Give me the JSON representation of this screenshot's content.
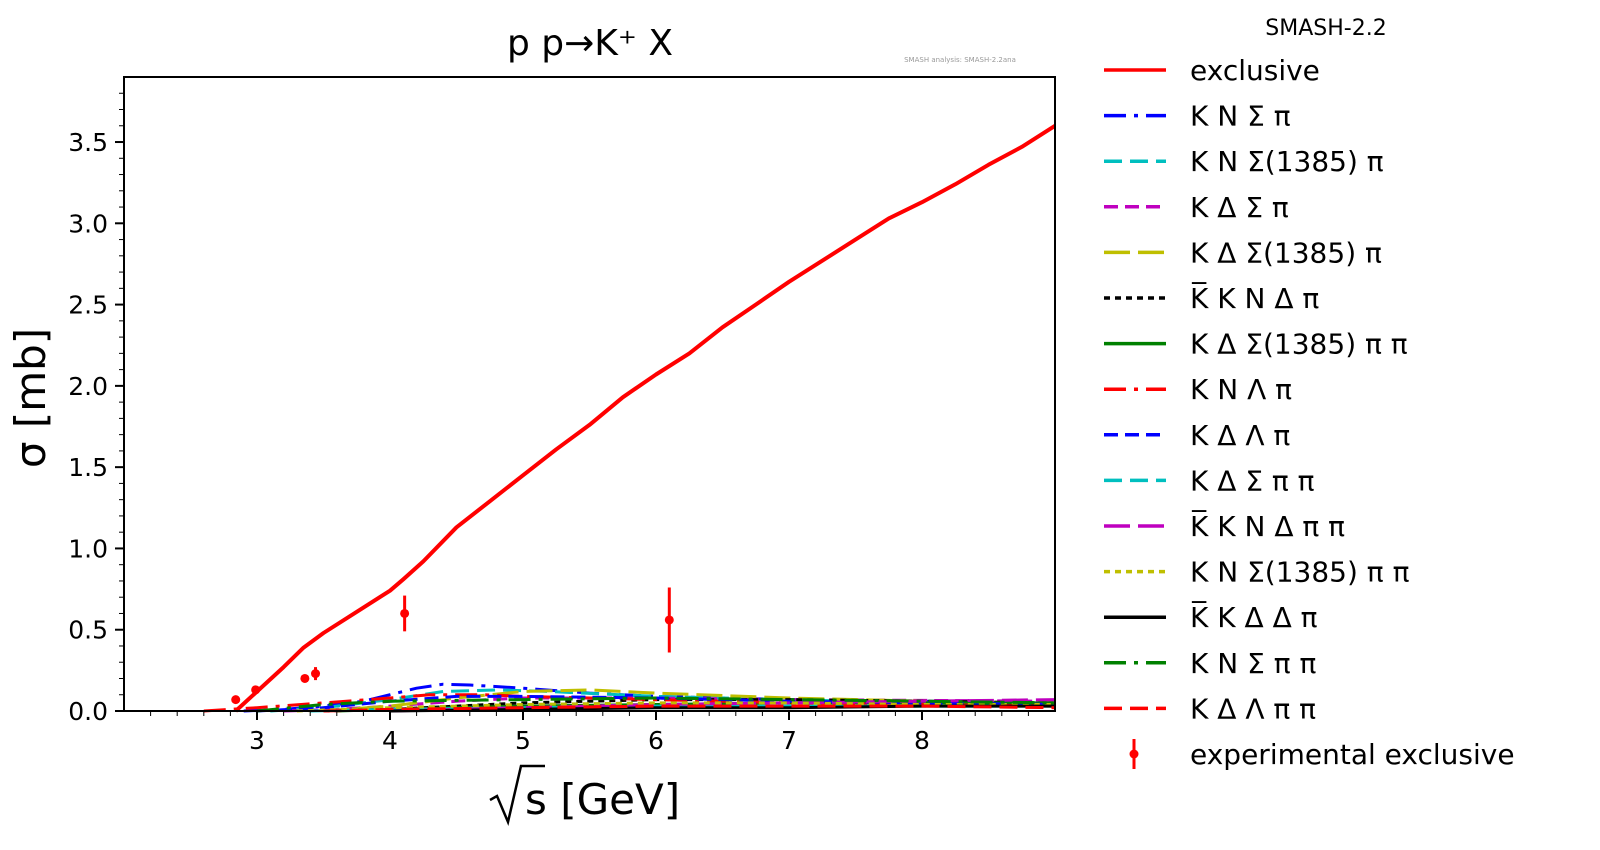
{
  "chart_data": {
    "type": "line",
    "title": "p p→K⁺ X",
    "watermark": "SMASH analysis: SMASH-2.2ana",
    "xlabel": "s [GeV]",
    "ylabel": "σ [mb]",
    "xlim": [
      2.0,
      9.0
    ],
    "ylim": [
      0.0,
      3.9
    ],
    "x_ticks": [
      "3",
      "4",
      "5",
      "6",
      "7",
      "8"
    ],
    "y_ticks": [
      "0.0",
      "0.5",
      "1.0",
      "1.5",
      "2.0",
      "2.5",
      "3.0",
      "3.5"
    ],
    "legend_title": "SMASH-2.2",
    "legend_position": "outside-right",
    "grid": false,
    "series": [
      {
        "name": "exclusive",
        "color": "#ff0000",
        "dash": "solid",
        "width": 4,
        "x": [
          2.84,
          3.0,
          3.2,
          3.35,
          3.5,
          3.75,
          4.0,
          4.1,
          4.25,
          4.5,
          4.75,
          5.0,
          5.25,
          5.5,
          5.75,
          6.0,
          6.25,
          6.5,
          6.75,
          7.0,
          7.25,
          7.5,
          7.75,
          8.0,
          8.25,
          8.5,
          8.75,
          9.0
        ],
        "y": [
          0.0,
          0.12,
          0.27,
          0.39,
          0.48,
          0.61,
          0.74,
          0.81,
          0.92,
          1.13,
          1.29,
          1.45,
          1.61,
          1.76,
          1.93,
          2.07,
          2.2,
          2.36,
          2.5,
          2.64,
          2.77,
          2.9,
          3.03,
          3.13,
          3.24,
          3.36,
          3.47,
          3.6
        ]
      },
      {
        "name": "K N Σ π",
        "color": "#0000ff",
        "dash": "22,8,4,8",
        "width": 3,
        "x": [
          2.9,
          3.2,
          3.5,
          3.8,
          4.0,
          4.2,
          4.4,
          4.6,
          5.0,
          5.5,
          6.0,
          7.0,
          8.0,
          9.0
        ],
        "y": [
          0.0,
          0.01,
          0.03,
          0.06,
          0.1,
          0.14,
          0.165,
          0.16,
          0.14,
          0.11,
          0.09,
          0.07,
          0.06,
          0.05
        ]
      },
      {
        "name": "K N Σ(1385) π",
        "color": "#00bfbf",
        "dash": "18,8",
        "width": 3,
        "x": [
          3.1,
          3.5,
          4.0,
          4.4,
          4.8,
          5.2,
          6.0,
          7.0,
          8.0,
          9.0
        ],
        "y": [
          0.0,
          0.02,
          0.07,
          0.12,
          0.13,
          0.12,
          0.09,
          0.07,
          0.05,
          0.04
        ]
      },
      {
        "name": "K Δ Σ π",
        "color": "#bf00bf",
        "dash": "14,7",
        "width": 3,
        "x": [
          3.2,
          3.6,
          4.0,
          4.5,
          5.0,
          5.5,
          6.0,
          7.0,
          8.0,
          9.0
        ],
        "y": [
          0.0,
          0.01,
          0.03,
          0.06,
          0.08,
          0.08,
          0.08,
          0.07,
          0.065,
          0.06
        ]
      },
      {
        "name": "K Δ Σ(1385) π",
        "color": "#bfbf00",
        "dash": "26,8",
        "width": 3,
        "x": [
          3.5,
          4.0,
          4.5,
          5.0,
          5.5,
          6.0,
          7.0,
          8.0,
          9.0
        ],
        "y": [
          0.0,
          0.03,
          0.08,
          0.12,
          0.13,
          0.11,
          0.08,
          0.06,
          0.05
        ]
      },
      {
        "name": "K̅ K N Δ π",
        "color": "#000000",
        "dash": "6,5",
        "width": 3,
        "x": [
          3.5,
          4.0,
          4.5,
          5.0,
          5.5,
          6.0,
          7.0,
          8.0,
          9.0
        ],
        "y": [
          0.0,
          0.01,
          0.03,
          0.05,
          0.06,
          0.07,
          0.07,
          0.06,
          0.05
        ]
      },
      {
        "name": "K Δ Σ(1385) π π",
        "color": "#008000",
        "dash": "solid",
        "width": 3,
        "x": [
          3.6,
          4.0,
          4.5,
          5.0,
          6.0,
          7.0,
          8.0,
          9.0
        ],
        "y": [
          0.0,
          0.01,
          0.02,
          0.03,
          0.04,
          0.05,
          0.05,
          0.05
        ]
      },
      {
        "name": "K N Λ π",
        "color": "#ff0000",
        "dash": "22,8,4,8",
        "width": 3,
        "x": [
          2.6,
          3.0,
          3.5,
          4.0,
          4.3,
          4.7,
          5.0,
          6.0,
          7.0,
          8.0,
          9.0
        ],
        "y": [
          0.0,
          0.02,
          0.05,
          0.08,
          0.1,
          0.1,
          0.09,
          0.07,
          0.05,
          0.04,
          0.03
        ]
      },
      {
        "name": "K Δ Λ π",
        "color": "#0000ff",
        "dash": "14,7",
        "width": 3,
        "x": [
          3.0,
          3.5,
          4.0,
          4.5,
          5.0,
          6.0,
          7.0,
          8.0,
          9.0
        ],
        "y": [
          0.0,
          0.02,
          0.06,
          0.09,
          0.09,
          0.08,
          0.06,
          0.05,
          0.04
        ]
      },
      {
        "name": "K Δ Σ π π",
        "color": "#00bfbf",
        "dash": "18,8",
        "width": 3,
        "x": [
          3.4,
          4.0,
          5.0,
          6.0,
          7.0,
          8.0,
          9.0
        ],
        "y": [
          0.0,
          0.01,
          0.02,
          0.03,
          0.03,
          0.03,
          0.03
        ]
      },
      {
        "name": "K̅ K N Δ π π",
        "color": "#bf00bf",
        "dash": "26,8",
        "width": 3,
        "x": [
          4.0,
          5.0,
          6.0,
          7.0,
          8.0,
          9.0
        ],
        "y": [
          0.0,
          0.02,
          0.04,
          0.05,
          0.06,
          0.07
        ]
      },
      {
        "name": "K N Σ(1385) π π",
        "color": "#bfbf00",
        "dash": "6,5",
        "width": 3,
        "x": [
          3.3,
          4.0,
          5.0,
          6.0,
          7.0,
          8.0,
          9.0
        ],
        "y": [
          0.0,
          0.02,
          0.04,
          0.05,
          0.05,
          0.04,
          0.04
        ]
      },
      {
        "name": "K̅ K Δ Δ π",
        "color": "#000000",
        "dash": "solid",
        "width": 3,
        "x": [
          4.0,
          5.0,
          6.0,
          7.0,
          8.0,
          9.0
        ],
        "y": [
          0.0,
          0.01,
          0.02,
          0.02,
          0.03,
          0.03
        ]
      },
      {
        "name": "K N Σ π π",
        "color": "#008000",
        "dash": "22,8,4,8",
        "width": 3,
        "x": [
          3.0,
          3.5,
          4.0,
          5.0,
          6.0,
          7.0,
          8.0,
          9.0
        ],
        "y": [
          0.0,
          0.04,
          0.06,
          0.07,
          0.08,
          0.07,
          0.06,
          0.05
        ]
      },
      {
        "name": "K Δ Λ π π",
        "color": "#ff0000",
        "dash": "18,8",
        "width": 3,
        "x": [
          3.5,
          4.0,
          5.0,
          6.0,
          7.0,
          8.0,
          9.0
        ],
        "y": [
          0.0,
          0.01,
          0.02,
          0.03,
          0.03,
          0.03,
          0.02
        ]
      }
    ],
    "experimental": {
      "name": "experimental exclusive",
      "color": "#ff0000",
      "points": [
        {
          "x": 2.84,
          "y": 0.07,
          "err": 0.01
        },
        {
          "x": 2.99,
          "y": 0.13,
          "err": 0.015
        },
        {
          "x": 3.36,
          "y": 0.2,
          "err": 0.02
        },
        {
          "x": 3.44,
          "y": 0.23,
          "err": 0.04
        },
        {
          "x": 4.11,
          "y": 0.6,
          "err": 0.11
        },
        {
          "x": 6.1,
          "y": 0.56,
          "err": 0.2
        }
      ]
    }
  }
}
